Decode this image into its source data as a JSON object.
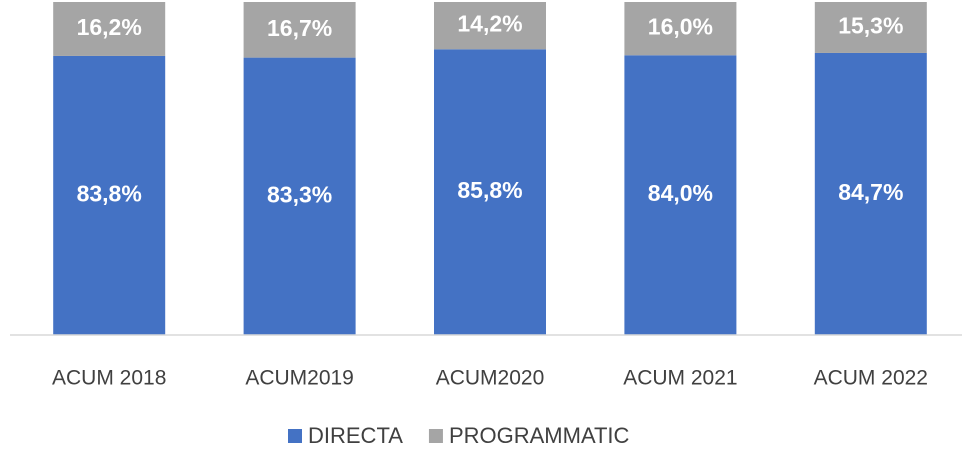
{
  "chart_data": {
    "type": "bar",
    "stacked": true,
    "categories": [
      "ACUM 2018",
      "ACUM2019",
      "ACUM2020",
      "ACUM 2021",
      "ACUM 2022"
    ],
    "series": [
      {
        "name": "DIRECTA",
        "color": "#4472c4",
        "values": [
          83.8,
          83.3,
          85.8,
          84.0,
          84.7
        ],
        "value_labels": [
          "83,8%",
          "83,3%",
          "85,8%",
          "84,0%",
          "84,7%"
        ]
      },
      {
        "name": "PROGRAMMATIC",
        "color": "#a5a5a5",
        "values": [
          16.2,
          16.7,
          14.2,
          16.0,
          15.3
        ],
        "value_labels": [
          "16,2%",
          "16,7%",
          "14,2%",
          "16,0%",
          "15,3%"
        ]
      }
    ],
    "ylim": [
      0,
      100
    ],
    "legend": "bottom"
  }
}
